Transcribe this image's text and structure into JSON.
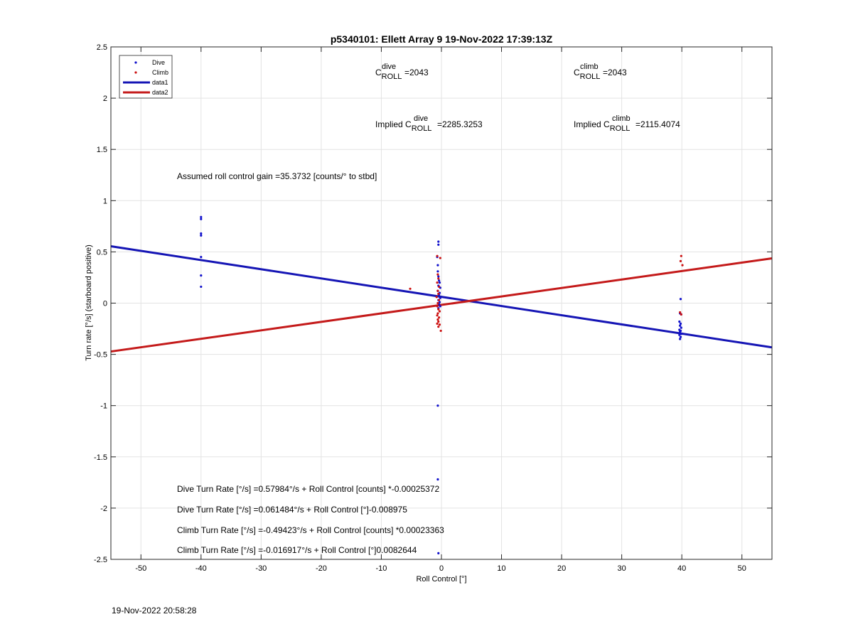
{
  "timestamp": "19-Nov-2022 20:58:28",
  "chart_data": {
    "type": "scatter",
    "title": "p5340101: Ellett Array 9 19-Nov-2022 17:39:13Z",
    "xlabel": "Roll Control [°]",
    "ylabel": "Turn rate [°/s] (starboard positive)",
    "xlim": [
      -55,
      55
    ],
    "ylim": [
      -2.5,
      2.5
    ],
    "xticks": [
      -50,
      -40,
      -30,
      -20,
      -10,
      0,
      10,
      20,
      30,
      40,
      50
    ],
    "yticks": [
      -2.5,
      -2,
      -1.5,
      -1,
      -0.5,
      0,
      0.5,
      1,
      1.5,
      2,
      2.5
    ],
    "xtick_labels": [
      "-50",
      "-40",
      "-30",
      "-20",
      "-10",
      "0",
      "10",
      "20",
      "30",
      "40",
      "50"
    ],
    "ytick_labels": [
      "-2.5",
      "-2",
      "-1.5",
      "-1",
      "-0.5",
      "0",
      "0.5",
      "1",
      "1.5",
      "2",
      "2.5"
    ],
    "grid": true,
    "legend_position": "top-left",
    "legend": [
      {
        "label": "Dive",
        "kind": "dot",
        "color": "#1111cc"
      },
      {
        "label": "Climb",
        "kind": "dot",
        "color": "#cc1111"
      },
      {
        "label": "data1",
        "kind": "line",
        "color": "#1515b5"
      },
      {
        "label": "data2",
        "kind": "line",
        "color": "#c41a1a"
      }
    ],
    "series": [
      {
        "name": "Dive",
        "kind": "scatter",
        "color": "#1111cc",
        "points": [
          [
            -40,
            0.84
          ],
          [
            -40,
            0.82
          ],
          [
            -40,
            0.68
          ],
          [
            -40,
            0.66
          ],
          [
            -40,
            0.45
          ],
          [
            -40,
            0.27
          ],
          [
            -40,
            0.16
          ],
          [
            -0.5,
            0.6
          ],
          [
            -0.5,
            0.57
          ],
          [
            -0.7,
            0.45
          ],
          [
            -0.6,
            0.37
          ],
          [
            -0.6,
            0.31
          ],
          [
            -0.5,
            0.26
          ],
          [
            -0.4,
            0.22
          ],
          [
            -0.3,
            0.2
          ],
          [
            -0.5,
            0.17
          ],
          [
            -0.2,
            0.15
          ],
          [
            -0.6,
            0.12
          ],
          [
            -0.3,
            0.1
          ],
          [
            -0.4,
            0.08
          ],
          [
            -0.2,
            0.05
          ],
          [
            -0.5,
            0.03
          ],
          [
            -0.3,
            0.01
          ],
          [
            -0.4,
            -0.01
          ],
          [
            -0.2,
            -0.03
          ],
          [
            -0.5,
            -0.05
          ],
          [
            -0.6,
            -1.0
          ],
          [
            -0.6,
            -1.72
          ],
          [
            -0.5,
            -2.44
          ],
          [
            39.8,
            0.04
          ],
          [
            39.7,
            -0.1
          ],
          [
            39.9,
            -0.11
          ],
          [
            39.6,
            -0.18
          ],
          [
            39.8,
            -0.2
          ],
          [
            39.7,
            -0.22
          ],
          [
            39.9,
            -0.24
          ],
          [
            39.6,
            -0.26
          ],
          [
            39.8,
            -0.27
          ],
          [
            39.7,
            -0.28
          ],
          [
            39.9,
            -0.3
          ],
          [
            39.6,
            -0.31
          ],
          [
            39.8,
            -0.33
          ],
          [
            39.7,
            -0.35
          ]
        ]
      },
      {
        "name": "Climb",
        "kind": "scatter",
        "color": "#cc1111",
        "points": [
          [
            -5.2,
            0.14
          ],
          [
            -0.7,
            0.46
          ],
          [
            -0.2,
            0.44
          ],
          [
            -0.6,
            0.28
          ],
          [
            -0.5,
            0.24
          ],
          [
            -0.7,
            0.2
          ],
          [
            -0.4,
            0.16
          ],
          [
            -0.6,
            0.12
          ],
          [
            -0.5,
            0.09
          ],
          [
            -0.8,
            0.06
          ],
          [
            -0.4,
            0.03
          ],
          [
            -0.6,
            0.0
          ],
          [
            -0.7,
            -0.03
          ],
          [
            -0.5,
            -0.06
          ],
          [
            -0.3,
            -0.08
          ],
          [
            -0.6,
            -0.1
          ],
          [
            -0.7,
            -0.12
          ],
          [
            -0.4,
            -0.14
          ],
          [
            -0.6,
            -0.16
          ],
          [
            -0.5,
            -0.18
          ],
          [
            -0.7,
            -0.2
          ],
          [
            -0.3,
            -0.21
          ],
          [
            -0.5,
            -0.23
          ],
          [
            -0.1,
            -0.27
          ],
          [
            39.9,
            0.46
          ],
          [
            39.8,
            0.41
          ],
          [
            40.1,
            0.37
          ],
          [
            39.7,
            -0.09
          ],
          [
            39.9,
            -0.11
          ]
        ]
      },
      {
        "name": "data1",
        "kind": "line",
        "color": "#1515b5",
        "x": [
          -55,
          55
        ],
        "y": [
          0.555,
          -0.432
        ]
      },
      {
        "name": "data2",
        "kind": "line",
        "color": "#c41a1a",
        "x": [
          -55,
          55
        ],
        "y": [
          -0.472,
          0.437
        ]
      }
    ],
    "annotations": {
      "c_dive_main": "C",
      "c_dive_sup": "dive",
      "c_dive_sub": "ROLL",
      "c_dive_val": "=2043",
      "c_climb_main": "C",
      "c_climb_sup": "climb",
      "c_climb_sub": "ROLL",
      "c_climb_val": "=2043",
      "impl_dive_prefix": "Implied C",
      "impl_dive_sup": "dive",
      "impl_dive_sub": "ROLL",
      "impl_dive_val": "=2285.3253",
      "impl_climb_prefix": "Implied C",
      "impl_climb_sup": "climb",
      "impl_climb_sub": "ROLL",
      "impl_climb_val": "=2115.4074",
      "gain": "Assumed roll control gain =35.3732 [counts/° to stbd]",
      "eq1": "Dive Turn Rate [°/s] =0.57984°/s + Roll Control [counts] *-0.00025372",
      "eq2": "Dive Turn Rate [°/s] =0.061484°/s + Roll Control [°]-0.008975",
      "eq3": "Climb Turn Rate [°/s] =-0.49423°/s + Roll Control [counts] *0.00023363",
      "eq4": "Climb Turn Rate [°/s] =-0.016917°/s + Roll Control [°]0.0082644"
    }
  }
}
